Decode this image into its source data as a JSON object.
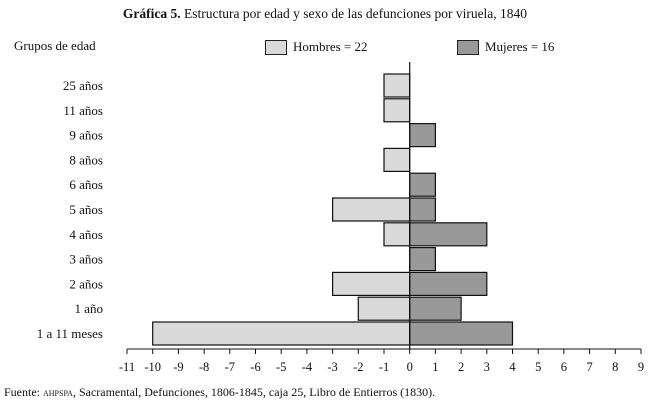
{
  "title_prefix": "Gráfica 5.",
  "title_rest": " Estructura por edad y sexo de las defunciones por viruela, 1840",
  "source_prefix": "Fuente: ",
  "source_abbrev": "ahpspa",
  "source_rest": ", Sacramental, Defunciones, 1806-1845, caja 25, Libro de Entierros (1830).",
  "colors": {
    "hombres": "#d9d9d9",
    "mujeres": "#999999",
    "stroke": "#111111"
  },
  "chart_data": {
    "type": "bar",
    "orientation": "horizontal-population-pyramid",
    "ylabel": "Grupos de edad",
    "categories": [
      "25 años",
      "11 años",
      "9 años",
      "8 años",
      "6 años",
      "5 años",
      "4 años",
      "3 años",
      "2 años",
      "1 año",
      "1 a 11 meses"
    ],
    "series": [
      {
        "name": "Hombres = 22",
        "values": [
          -1,
          -1,
          0,
          -1,
          0,
          -3,
          -1,
          0,
          -3,
          -2,
          -10
        ]
      },
      {
        "name": "Mujeres = 16",
        "values": [
          0,
          0,
          1,
          0,
          1,
          1,
          3,
          1,
          3,
          2,
          4
        ]
      }
    ],
    "xlim": [
      -11,
      9
    ],
    "xticks": [
      "-11",
      "-10",
      "-9",
      "-8",
      "-7",
      "-6",
      "-5",
      "-4",
      "-3",
      "-2",
      "-1",
      "0",
      "1",
      "2",
      "3",
      "4",
      "5",
      "6",
      "7",
      "8",
      "9"
    ],
    "grid": false,
    "legend": "top"
  }
}
